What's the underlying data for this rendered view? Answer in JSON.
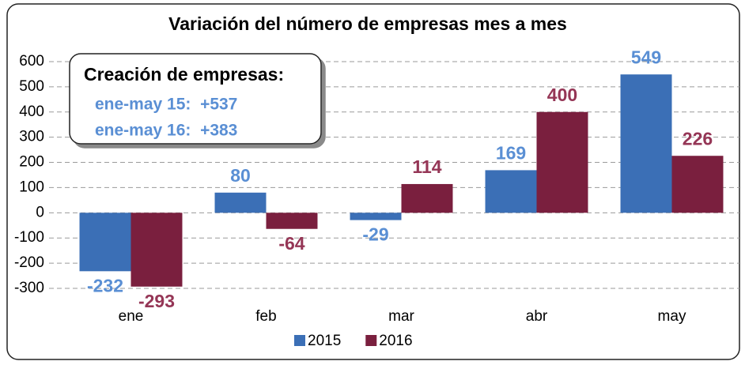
{
  "chart_data": {
    "type": "bar",
    "title": "Variación del número de empresas mes a mes",
    "categories": [
      "ene",
      "feb",
      "mar",
      "abr",
      "may"
    ],
    "series": [
      {
        "name": "2015",
        "color": "#3b6fb6",
        "label_color": "#5a8fd4",
        "values": [
          -232,
          80,
          -29,
          169,
          549
        ]
      },
      {
        "name": "2016",
        "color": "#7a1f3e",
        "label_color": "#953656",
        "values": [
          -293,
          -64,
          114,
          400,
          226
        ]
      }
    ],
    "ylim": [
      -300,
      650
    ],
    "yticks": [
      -300,
      -200,
      -100,
      0,
      100,
      200,
      300,
      400,
      500,
      600
    ],
    "grid": true,
    "legend": "bottom",
    "annotations": [
      "Creación de empresas:",
      "ene-may 15:  +537",
      "ene-may 16:  +383"
    ]
  }
}
